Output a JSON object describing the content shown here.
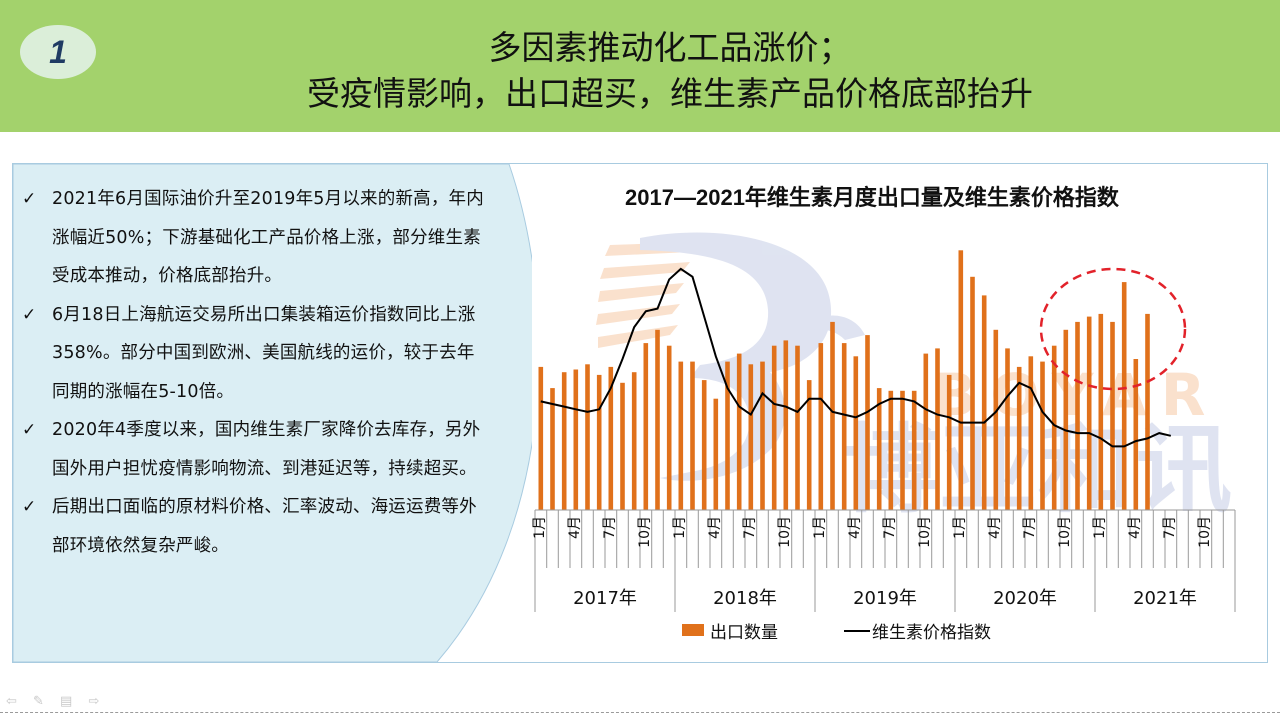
{
  "slide": {
    "number": "1",
    "title_line1": "多因素推动化工品涨价；",
    "title_line2": "受疫情影响，出口超买，维生素产品价格底部抬升"
  },
  "bullets": [
    "2021年6月国际油价升至2019年5月以来的新高，年内涨幅近50%；下游基础化工产品价格上涨，部分维生素受成本推动，价格底部抬升。",
    "6月18日上海航运交易所出口集装箱运价指数同比上涨358%。部分中国到欧洲、美国航线的运价，较于去年同期的涨幅在5-10倍。",
    "2020年4季度以来，国内维生素厂家降价去库存，另外国外用户担忧疫情影响物流、到港延迟等，持续超买。",
    "后期出口面临的原材料价格、汇率波动、海运运费等外部环境依然复杂严峻。"
  ],
  "watermark": {
    "cn": "博亚和讯",
    "en": "BOYAR"
  },
  "chart_data": {
    "type": "bar+line",
    "title": "2017—2021年维生素月度出口量及维生素价格指数",
    "years": [
      "2017年",
      "2018年",
      "2019年",
      "2020年",
      "2021年"
    ],
    "month_ticks": [
      "1月",
      "4月",
      "7月",
      "10月"
    ],
    "x_range": [
      "2017-01",
      "2021-12"
    ],
    "legend": {
      "bar": "出口数量",
      "line": "维生素价格指数",
      "position": "bottom"
    },
    "y_axis_visible": false,
    "series": [
      {
        "name": "出口数量",
        "kind": "bar",
        "color": "#e0711b",
        "values": [
          54,
          46,
          52,
          53,
          55,
          51,
          54,
          48,
          52,
          63,
          68,
          62,
          56,
          56,
          49,
          42,
          56,
          59,
          55,
          56,
          62,
          64,
          62,
          49,
          63,
          71,
          63,
          58,
          66,
          46,
          45,
          45,
          45,
          59,
          61,
          51,
          98,
          88,
          81,
          68,
          61,
          54,
          58,
          56,
          62,
          68,
          71,
          73,
          74,
          71,
          86,
          57,
          74
        ]
      },
      {
        "name": "维生素价格指数",
        "kind": "line",
        "color": "#000000",
        "values": [
          41,
          40,
          39,
          38,
          37,
          38,
          46,
          57,
          69,
          75,
          76,
          87,
          91,
          88,
          73,
          58,
          46,
          39,
          36,
          44,
          40,
          39,
          37,
          42,
          42,
          37,
          36,
          35,
          37,
          40,
          42,
          42,
          41,
          38,
          36,
          35,
          33,
          33,
          33,
          37,
          43,
          48,
          46,
          37,
          32,
          30,
          29,
          29,
          27,
          24,
          24,
          26,
          27,
          29,
          28
        ]
      }
    ]
  }
}
